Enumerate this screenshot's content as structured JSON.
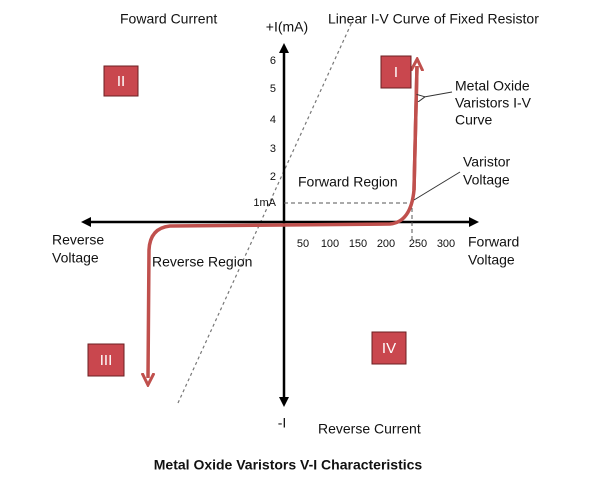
{
  "labels": {
    "forward_current": "Foward Current",
    "plus_i": "+I(mA)",
    "linear_curve": "Linear I-V Curve of Fixed Resistor",
    "minus_i": "-I",
    "reverse_current": "Reverse Current",
    "forward_voltage": [
      "Forward",
      "Voltage"
    ],
    "reverse_voltage": [
      "Reverse",
      "Voltage"
    ],
    "reverse_region": "Reverse Region",
    "forward_region": "Forward Region",
    "mov_curve": [
      "Metal Oxide",
      "Varistors I-V",
      "Curve"
    ],
    "varistor_voltage": [
      "Varistor",
      "Voltage"
    ]
  },
  "y_ticks": [
    "6",
    "5",
    "4",
    "3",
    "2",
    "1mA"
  ],
  "x_ticks": [
    "50",
    "100",
    "150",
    "200",
    "250",
    "300"
  ],
  "quadrants": [
    "I",
    "II",
    "III",
    "IV"
  ],
  "title": "Metal Oxide Varistors V-I Characteristics"
}
